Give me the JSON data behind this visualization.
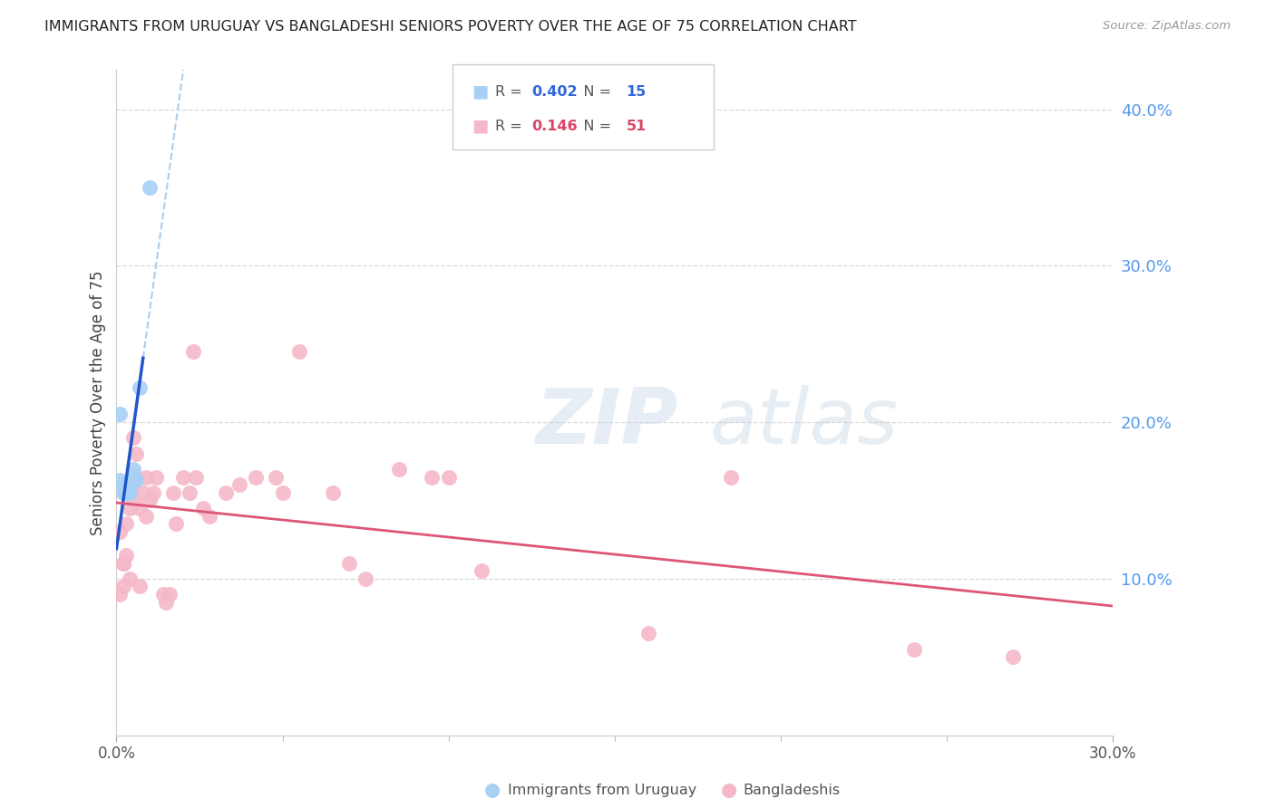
{
  "title": "IMMIGRANTS FROM URUGUAY VS BANGLADESHI SENIORS POVERTY OVER THE AGE OF 75 CORRELATION CHART",
  "source": "Source: ZipAtlas.com",
  "ylabel": "Seniors Poverty Over the Age of 75",
  "xmin": 0.0,
  "xmax": 0.3,
  "ymin": 0.0,
  "ymax": 0.425,
  "watermark_zip": "ZIP",
  "watermark_atlas": "atlas",
  "legend_blue_r": "0.402",
  "legend_blue_n": "15",
  "legend_pink_r": "0.146",
  "legend_pink_n": "51",
  "blue_scatter_color": "#a8d0f5",
  "pink_scatter_color": "#f5b8c8",
  "blue_line_color": "#2255cc",
  "pink_line_color": "#dd5577",
  "dashed_color": "#aaccee",
  "grid_color": "#d8d8d8",
  "right_tick_color": "#5599ee",
  "uruguayan_x": [
    0.001,
    0.001,
    0.002,
    0.002,
    0.003,
    0.003,
    0.003,
    0.004,
    0.004,
    0.004,
    0.005,
    0.005,
    0.006,
    0.007,
    0.01
  ],
  "uruguayan_y": [
    0.205,
    0.163,
    0.16,
    0.155,
    0.16,
    0.16,
    0.155,
    0.16,
    0.158,
    0.155,
    0.165,
    0.17,
    0.163,
    0.222,
    0.35
  ],
  "bangladeshi_x": [
    0.001,
    0.001,
    0.002,
    0.002,
    0.002,
    0.003,
    0.003,
    0.003,
    0.004,
    0.004,
    0.005,
    0.005,
    0.005,
    0.006,
    0.006,
    0.007,
    0.007,
    0.008,
    0.009,
    0.009,
    0.01,
    0.011,
    0.012,
    0.014,
    0.015,
    0.016,
    0.017,
    0.018,
    0.02,
    0.022,
    0.023,
    0.024,
    0.026,
    0.028,
    0.033,
    0.037,
    0.042,
    0.048,
    0.05,
    0.055,
    0.065,
    0.07,
    0.075,
    0.085,
    0.095,
    0.1,
    0.11,
    0.16,
    0.185,
    0.24,
    0.27
  ],
  "bangladeshi_y": [
    0.13,
    0.09,
    0.11,
    0.11,
    0.095,
    0.155,
    0.135,
    0.115,
    0.145,
    0.1,
    0.15,
    0.19,
    0.16,
    0.18,
    0.165,
    0.145,
    0.095,
    0.155,
    0.165,
    0.14,
    0.15,
    0.155,
    0.165,
    0.09,
    0.085,
    0.09,
    0.155,
    0.135,
    0.165,
    0.155,
    0.245,
    0.165,
    0.145,
    0.14,
    0.155,
    0.16,
    0.165,
    0.165,
    0.155,
    0.245,
    0.155,
    0.11,
    0.1,
    0.17,
    0.165,
    0.165,
    0.105,
    0.065,
    0.165,
    0.055,
    0.05
  ]
}
